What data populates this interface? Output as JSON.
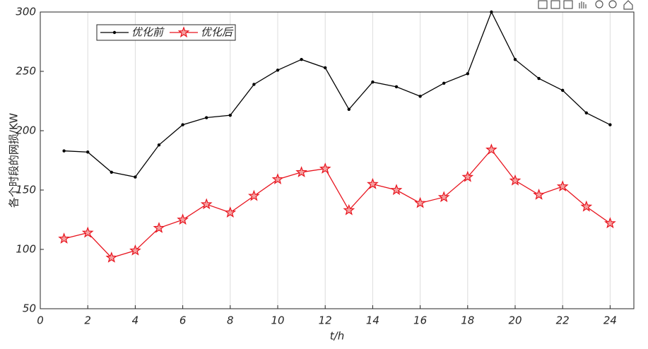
{
  "chart_data": {
    "type": "line",
    "x_label": "t/h",
    "y_label": "各个时段的网损/KW",
    "x": [
      1,
      2,
      3,
      4,
      5,
      6,
      7,
      8,
      9,
      10,
      11,
      12,
      13,
      14,
      15,
      16,
      17,
      18,
      19,
      20,
      21,
      22,
      23,
      24
    ],
    "series": [
      {
        "name": "优化前",
        "color": "#000000",
        "marker": "dot",
        "values": [
          183,
          182,
          165,
          161,
          188,
          205,
          211,
          213,
          239,
          251,
          260,
          253,
          218,
          241,
          237,
          229,
          240,
          248,
          300,
          260,
          244,
          234,
          215,
          205
        ]
      },
      {
        "name": "优化后",
        "color": "#e8141e",
        "marker": "star",
        "values": [
          109,
          114,
          93,
          99,
          118,
          125,
          138,
          131,
          145,
          159,
          165,
          168,
          133,
          155,
          150,
          139,
          144,
          161,
          184,
          158,
          146,
          153,
          136,
          122
        ]
      }
    ],
    "xlim": [
      0,
      25
    ],
    "xticks": [
      0,
      2,
      4,
      6,
      8,
      10,
      12,
      14,
      16,
      18,
      20,
      22,
      24
    ],
    "ylim": [
      50,
      300
    ],
    "yticks": [
      50,
      100,
      150,
      200,
      250,
      300
    ],
    "grid": "x",
    "legend": "upper left"
  }
}
